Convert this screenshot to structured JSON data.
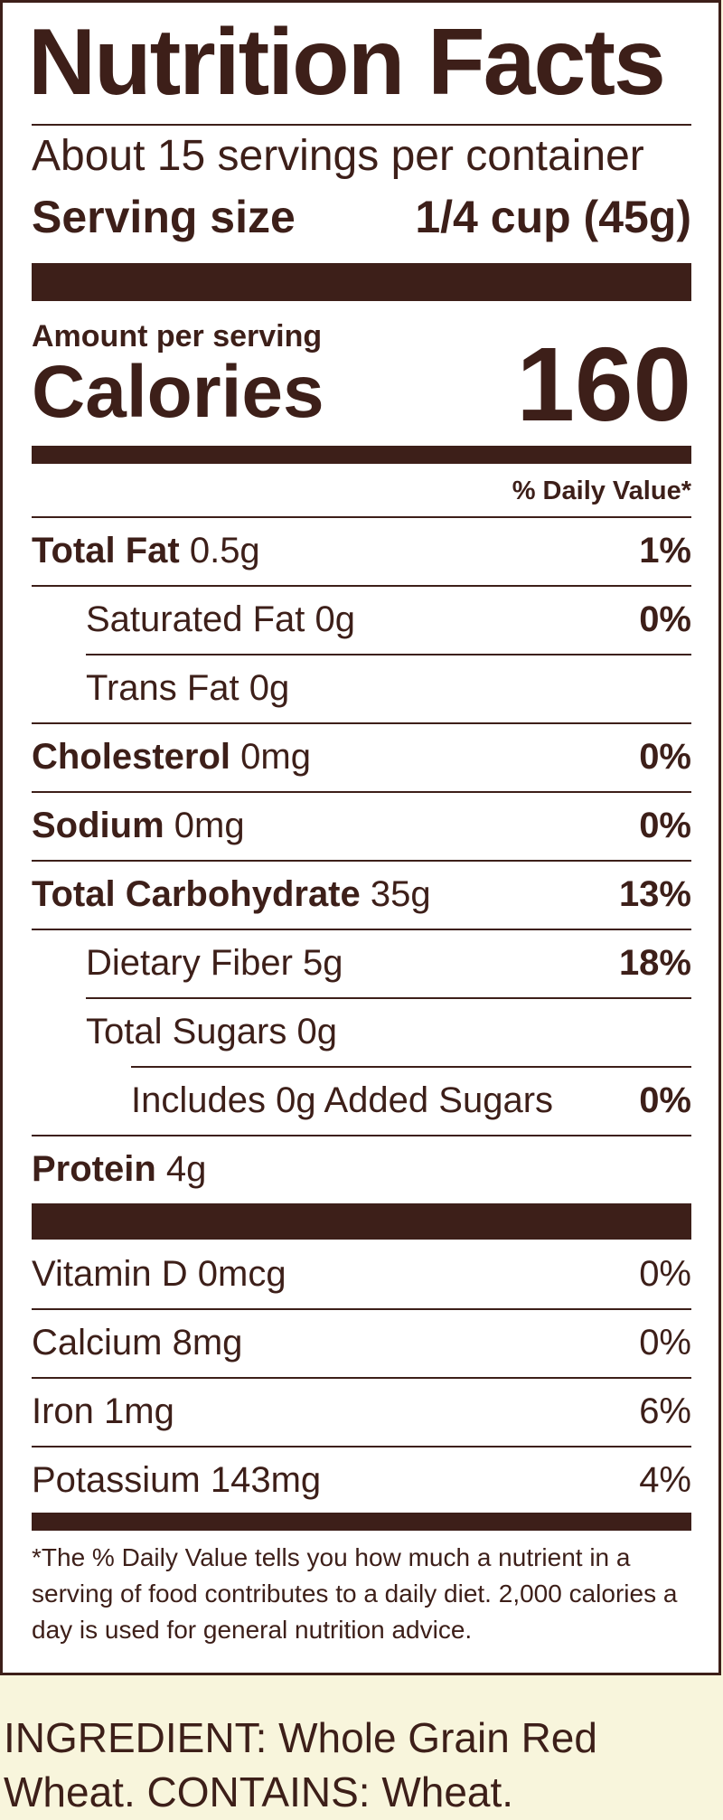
{
  "label": {
    "title": "Nutrition Facts",
    "servings_per_container": "About 15 servings per container",
    "serving_size_label": "Serving size",
    "serving_size_value": "1/4 cup (45g)",
    "amount_per_serving": "Amount per serving",
    "calories_label": "Calories",
    "calories_value": "160",
    "daily_value_header": "% Daily Value*",
    "nutrients": [
      {
        "name": "Total Fat",
        "amount": "0.5g",
        "dv": "1%"
      },
      {
        "name": "Saturated Fat 0g",
        "amount": "",
        "dv": "0%"
      },
      {
        "name": "Trans Fat 0g",
        "amount": "",
        "dv": ""
      },
      {
        "name": "Cholesterol",
        "amount": "0mg",
        "dv": "0%"
      },
      {
        "name": "Sodium",
        "amount": "0mg",
        "dv": "0%"
      },
      {
        "name": "Total Carbohydrate",
        "amount": "35g",
        "dv": "13%"
      },
      {
        "name": "Dietary Fiber 5g",
        "amount": "",
        "dv": "18%"
      },
      {
        "name": "Total Sugars 0g",
        "amount": "",
        "dv": ""
      },
      {
        "name": "Includes 0g Added Sugars",
        "amount": "",
        "dv": "0%"
      },
      {
        "name": "Protein",
        "amount": "4g",
        "dv": ""
      }
    ],
    "vitamins": [
      {
        "name": "Vitamin D 0mcg",
        "dv": "0%"
      },
      {
        "name": "Calcium 8mg",
        "dv": "0%"
      },
      {
        "name": "Iron 1mg",
        "dv": "6%"
      },
      {
        "name": "Potassium 143mg",
        "dv": "4%"
      }
    ],
    "footnote": "*The % Daily Value tells you how much a nutrient in a serving of food contributes to a daily diet. 2,000 calories a day is used for general nutrition advice."
  },
  "ingredients": "INGREDIENT: Whole Grain Red Wheat. CONTAINS: Wheat."
}
